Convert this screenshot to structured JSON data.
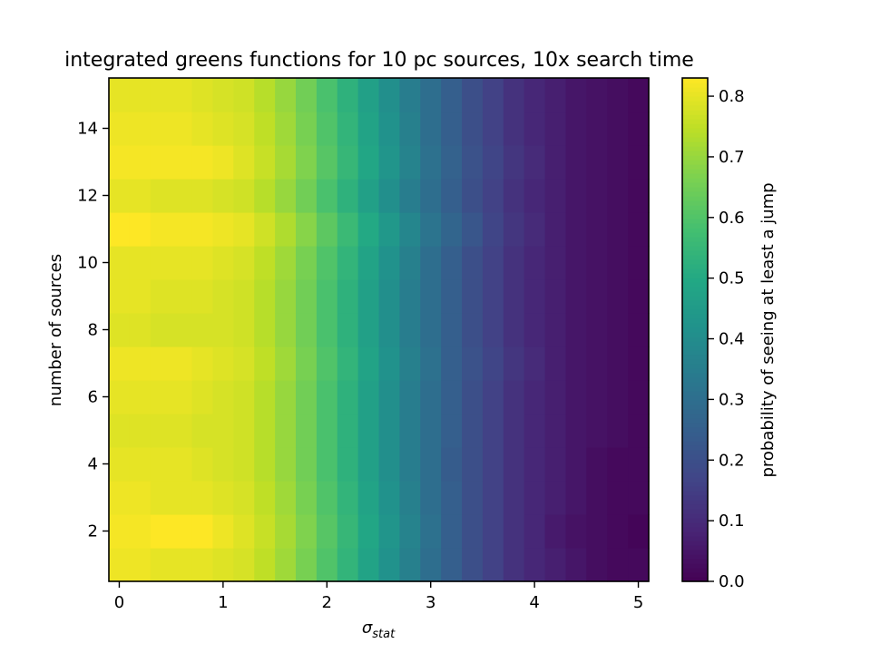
{
  "chart_data": {
    "type": "heatmap",
    "title": "integrated greens functions for 10 pc sources, 10x search time",
    "xlabel": {
      "main": "σ",
      "sub": "stat"
    },
    "ylabel": "number of sources",
    "colorbar_label": "probability of seeing at least a jump",
    "colormap": "viridis",
    "x_centers": [
      0.0,
      0.2,
      0.4,
      0.6,
      0.8,
      1.0,
      1.2,
      1.4,
      1.6,
      1.8,
      2.0,
      2.2,
      2.4,
      2.6,
      2.8,
      3.0,
      3.2,
      3.4,
      3.6,
      3.8,
      4.0,
      4.2,
      4.4,
      4.6,
      4.8,
      5.0
    ],
    "y_centers": [
      1,
      2,
      3,
      4,
      5,
      6,
      7,
      8,
      9,
      10,
      11,
      12,
      13,
      14,
      15
    ],
    "xlim": [
      -0.1,
      5.1
    ],
    "ylim": [
      0.5,
      15.5
    ],
    "vmin": 0.0,
    "vmax": 0.83,
    "x_ticks": [
      0,
      1,
      2,
      3,
      4,
      5
    ],
    "y_ticks": [
      2,
      4,
      6,
      8,
      10,
      12,
      14
    ],
    "colorbar_ticks": [
      "0.0",
      "0.1",
      "0.2",
      "0.3",
      "0.4",
      "0.5",
      "0.6",
      "0.7",
      "0.8"
    ],
    "values": [
      [
        0.81,
        0.81,
        0.8,
        0.8,
        0.8,
        0.79,
        0.78,
        0.75,
        0.71,
        0.66,
        0.6,
        0.54,
        0.48,
        0.42,
        0.36,
        0.3,
        0.25,
        0.2,
        0.16,
        0.12,
        0.09,
        0.07,
        0.05,
        0.03,
        0.02,
        0.02
      ],
      [
        0.82,
        0.82,
        0.83,
        0.83,
        0.83,
        0.81,
        0.79,
        0.76,
        0.72,
        0.67,
        0.61,
        0.55,
        0.49,
        0.43,
        0.37,
        0.31,
        0.25,
        0.2,
        0.16,
        0.12,
        0.09,
        0.06,
        0.04,
        0.03,
        0.02,
        0.01
      ],
      [
        0.81,
        0.81,
        0.8,
        0.8,
        0.8,
        0.79,
        0.78,
        0.75,
        0.71,
        0.66,
        0.6,
        0.54,
        0.48,
        0.42,
        0.36,
        0.3,
        0.25,
        0.2,
        0.16,
        0.12,
        0.09,
        0.07,
        0.05,
        0.03,
        0.02,
        0.02
      ],
      [
        0.8,
        0.8,
        0.8,
        0.8,
        0.79,
        0.78,
        0.77,
        0.74,
        0.7,
        0.65,
        0.59,
        0.53,
        0.47,
        0.41,
        0.35,
        0.3,
        0.24,
        0.2,
        0.16,
        0.12,
        0.09,
        0.07,
        0.05,
        0.03,
        0.02,
        0.02
      ],
      [
        0.79,
        0.79,
        0.79,
        0.79,
        0.78,
        0.78,
        0.77,
        0.74,
        0.7,
        0.65,
        0.59,
        0.53,
        0.47,
        0.41,
        0.35,
        0.3,
        0.25,
        0.2,
        0.16,
        0.12,
        0.09,
        0.07,
        0.05,
        0.04,
        0.03,
        0.02
      ],
      [
        0.8,
        0.8,
        0.8,
        0.8,
        0.79,
        0.78,
        0.77,
        0.74,
        0.7,
        0.65,
        0.59,
        0.53,
        0.47,
        0.41,
        0.35,
        0.3,
        0.25,
        0.2,
        0.16,
        0.12,
        0.09,
        0.07,
        0.05,
        0.04,
        0.03,
        0.02
      ],
      [
        0.81,
        0.81,
        0.81,
        0.81,
        0.8,
        0.79,
        0.78,
        0.75,
        0.71,
        0.66,
        0.6,
        0.54,
        0.48,
        0.42,
        0.36,
        0.31,
        0.25,
        0.21,
        0.17,
        0.13,
        0.1,
        0.07,
        0.05,
        0.04,
        0.03,
        0.02
      ],
      [
        0.79,
        0.79,
        0.78,
        0.78,
        0.78,
        0.78,
        0.77,
        0.74,
        0.7,
        0.65,
        0.59,
        0.53,
        0.47,
        0.41,
        0.35,
        0.3,
        0.25,
        0.2,
        0.16,
        0.12,
        0.09,
        0.07,
        0.05,
        0.04,
        0.03,
        0.02
      ],
      [
        0.8,
        0.8,
        0.79,
        0.79,
        0.79,
        0.78,
        0.77,
        0.74,
        0.7,
        0.65,
        0.59,
        0.53,
        0.47,
        0.41,
        0.35,
        0.3,
        0.25,
        0.2,
        0.16,
        0.12,
        0.09,
        0.07,
        0.05,
        0.04,
        0.03,
        0.02
      ],
      [
        0.8,
        0.8,
        0.8,
        0.8,
        0.8,
        0.79,
        0.78,
        0.75,
        0.71,
        0.66,
        0.6,
        0.54,
        0.48,
        0.42,
        0.36,
        0.3,
        0.25,
        0.2,
        0.16,
        0.12,
        0.09,
        0.07,
        0.05,
        0.04,
        0.03,
        0.02
      ],
      [
        0.83,
        0.83,
        0.82,
        0.82,
        0.82,
        0.81,
        0.8,
        0.77,
        0.73,
        0.68,
        0.62,
        0.56,
        0.5,
        0.44,
        0.38,
        0.32,
        0.27,
        0.22,
        0.17,
        0.13,
        0.1,
        0.07,
        0.05,
        0.04,
        0.03,
        0.02
      ],
      [
        0.8,
        0.8,
        0.79,
        0.79,
        0.79,
        0.78,
        0.77,
        0.74,
        0.7,
        0.65,
        0.59,
        0.53,
        0.47,
        0.41,
        0.35,
        0.3,
        0.25,
        0.2,
        0.16,
        0.12,
        0.09,
        0.07,
        0.05,
        0.04,
        0.03,
        0.02
      ],
      [
        0.82,
        0.82,
        0.82,
        0.82,
        0.82,
        0.81,
        0.79,
        0.76,
        0.72,
        0.67,
        0.61,
        0.55,
        0.49,
        0.43,
        0.37,
        0.31,
        0.26,
        0.21,
        0.17,
        0.13,
        0.1,
        0.07,
        0.05,
        0.04,
        0.03,
        0.02
      ],
      [
        0.81,
        0.81,
        0.81,
        0.81,
        0.8,
        0.79,
        0.78,
        0.75,
        0.71,
        0.66,
        0.6,
        0.54,
        0.48,
        0.42,
        0.36,
        0.3,
        0.25,
        0.2,
        0.16,
        0.12,
        0.09,
        0.07,
        0.05,
        0.04,
        0.03,
        0.02
      ],
      [
        0.8,
        0.8,
        0.8,
        0.8,
        0.79,
        0.78,
        0.77,
        0.74,
        0.7,
        0.65,
        0.59,
        0.53,
        0.47,
        0.41,
        0.35,
        0.3,
        0.25,
        0.2,
        0.16,
        0.12,
        0.09,
        0.07,
        0.05,
        0.04,
        0.03,
        0.02
      ]
    ]
  }
}
